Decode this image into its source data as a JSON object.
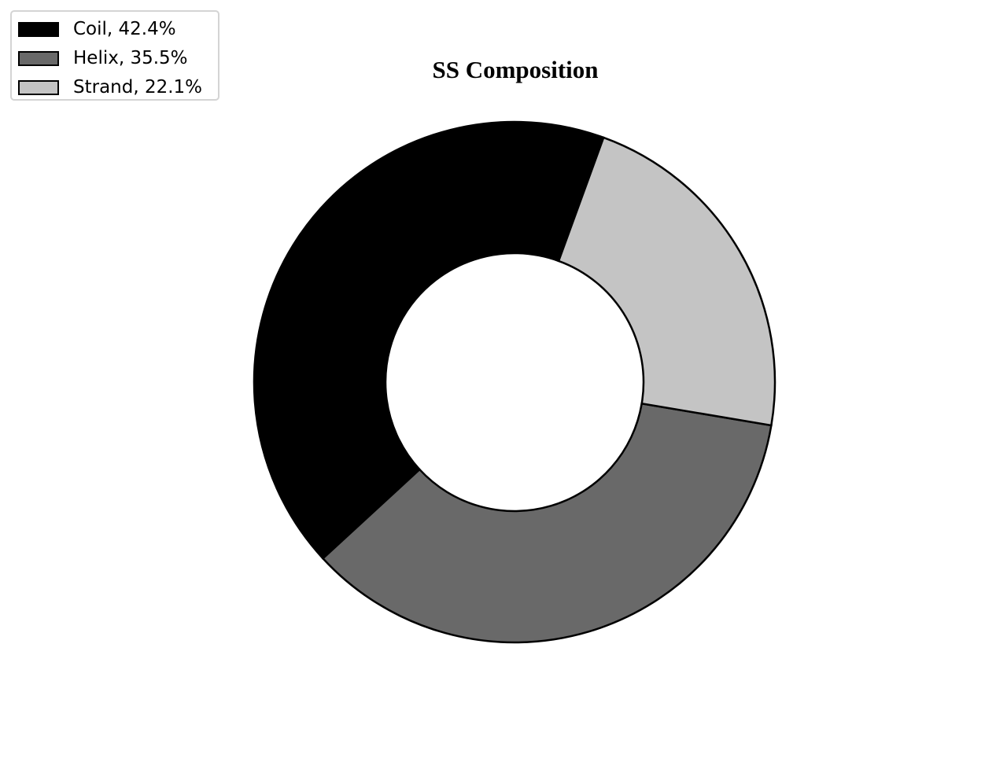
{
  "chart_data": {
    "type": "pie",
    "variant": "donut",
    "title": "SS Composition",
    "legend_position": "top-left",
    "series": [
      {
        "name": "Coil",
        "value": 42.4,
        "label": "Coil, 42.4%",
        "color": "#000000"
      },
      {
        "name": "Helix",
        "value": 35.5,
        "label": "Helix, 35.5%",
        "color": "#696969"
      },
      {
        "name": "Strand",
        "value": 22.1,
        "label": "Strand, 22.1%",
        "color": "#c4c4c4"
      }
    ],
    "edge_color": "#000000"
  }
}
